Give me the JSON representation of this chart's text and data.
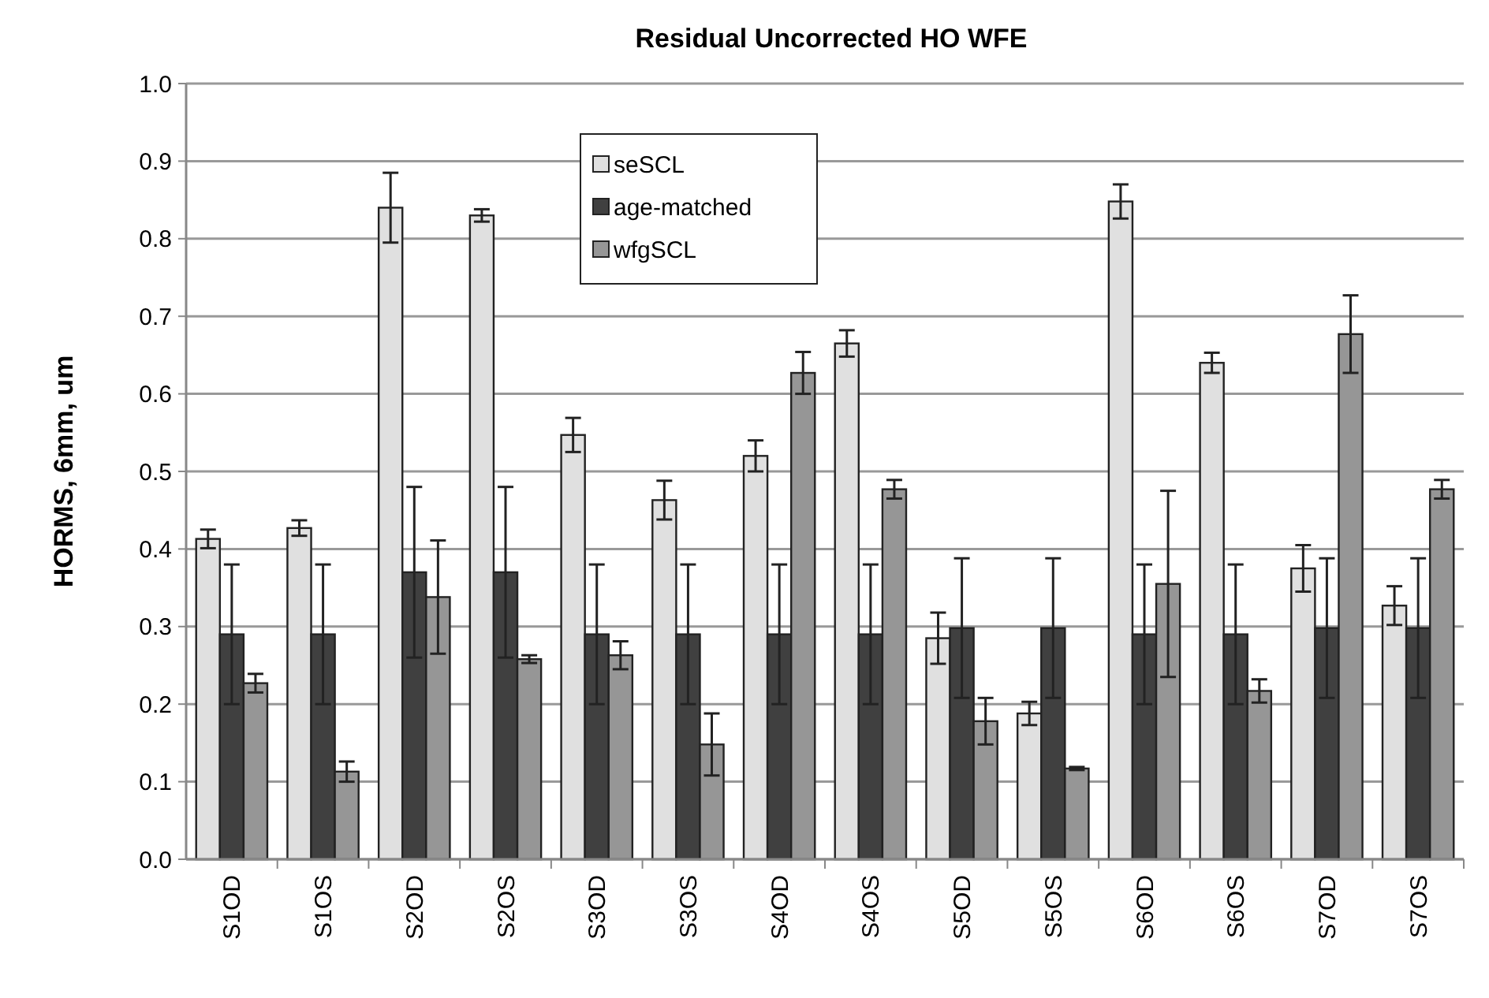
{
  "chart_data": {
    "type": "bar",
    "title": "Residual Uncorrected HO WFE",
    "ylabel": "HORMS, 6mm, um",
    "categories": [
      "S1OD",
      "S1OS",
      "S2OD",
      "S2OS",
      "S3OD",
      "S3OS",
      "S4OD",
      "S4OS",
      "S5OD",
      "S5OS",
      "S6OD",
      "S6OS",
      "S7OD",
      "S7OS"
    ],
    "series": [
      {
        "name": "seSCL",
        "color": "#e0e0e0",
        "values": [
          0.413,
          0.427,
          0.84,
          0.83,
          0.547,
          0.463,
          0.52,
          0.665,
          0.285,
          0.188,
          0.848,
          0.64,
          0.375,
          0.327
        ],
        "errors": [
          0.012,
          0.01,
          0.045,
          0.008,
          0.022,
          0.025,
          0.02,
          0.017,
          0.033,
          0.015,
          0.022,
          0.013,
          0.03,
          0.025
        ]
      },
      {
        "name": "age-matched",
        "color": "#404040",
        "values": [
          0.29,
          0.29,
          0.37,
          0.37,
          0.29,
          0.29,
          0.29,
          0.29,
          0.298,
          0.298,
          0.29,
          0.29,
          0.298,
          0.298
        ],
        "errors": [
          0.09,
          0.09,
          0.11,
          0.11,
          0.09,
          0.09,
          0.09,
          0.09,
          0.09,
          0.09,
          0.09,
          0.09,
          0.09,
          0.09
        ]
      },
      {
        "name": "wfgSCL",
        "color": "#969696",
        "values": [
          0.227,
          0.113,
          0.338,
          0.258,
          0.263,
          0.148,
          0.627,
          0.477,
          0.178,
          0.117,
          0.355,
          0.217,
          0.677,
          0.477
        ],
        "errors": [
          0.012,
          0.013,
          0.073,
          0.005,
          0.018,
          0.04,
          0.027,
          0.012,
          0.03,
          0.002,
          0.12,
          0.015,
          0.05,
          0.012
        ]
      }
    ],
    "ylim": [
      0,
      1
    ],
    "yticks": [
      {
        "value": 0,
        "label": "0.0"
      },
      {
        "value": 0.1,
        "label": "0.1"
      },
      {
        "value": 0.2,
        "label": "0.2"
      },
      {
        "value": 0.3,
        "label": "0.3"
      },
      {
        "value": 0.4,
        "label": "0.4"
      },
      {
        "value": 0.5,
        "label": "0.5"
      },
      {
        "value": 0.6,
        "label": "0.6"
      },
      {
        "value": 0.7,
        "label": "0.7"
      },
      {
        "value": 0.8,
        "label": "0.8"
      },
      {
        "value": 0.9,
        "label": "0.9"
      },
      {
        "value": 1,
        "label": "1.0"
      }
    ],
    "grid": "y",
    "legend": "top"
  }
}
